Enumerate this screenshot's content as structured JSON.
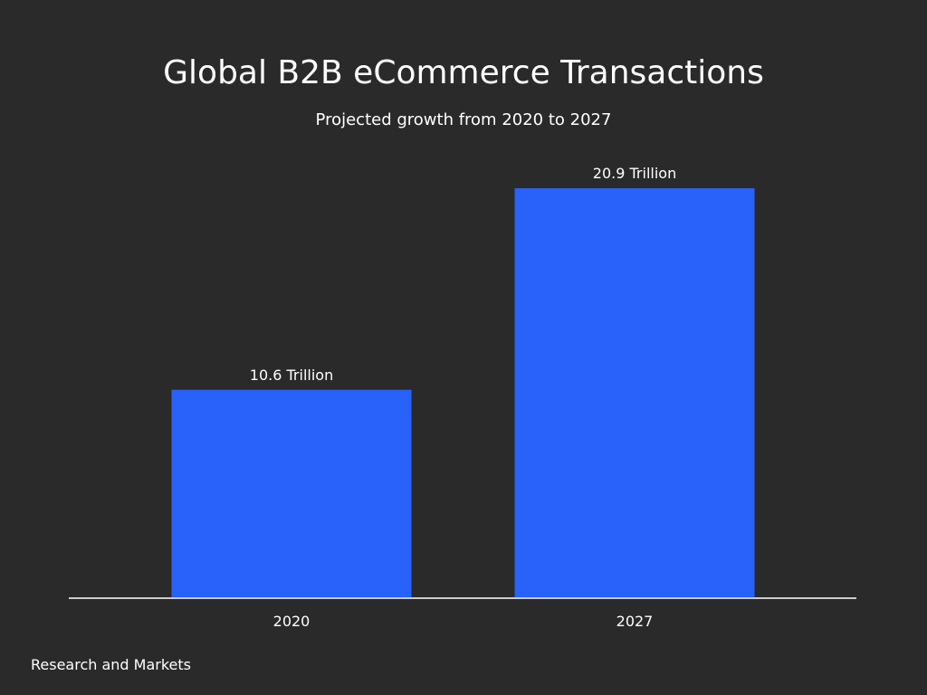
{
  "chart_data": {
    "type": "bar",
    "title": "Global B2B eCommerce Transactions",
    "subtitle": "Projected growth from 2020 to 2027",
    "categories": [
      "2020",
      "2027"
    ],
    "values": [
      10.6,
      20.9
    ],
    "data_labels": [
      "10.6 Trillion",
      "20.9 Trillion"
    ],
    "xlabel": "",
    "ylabel": "",
    "ylim": [
      0,
      20.9
    ],
    "grid": false,
    "source": "Research and Markets",
    "colors": {
      "bar": "#2962fb",
      "background": "#2a2a2a",
      "axis": "#cccccc"
    }
  }
}
